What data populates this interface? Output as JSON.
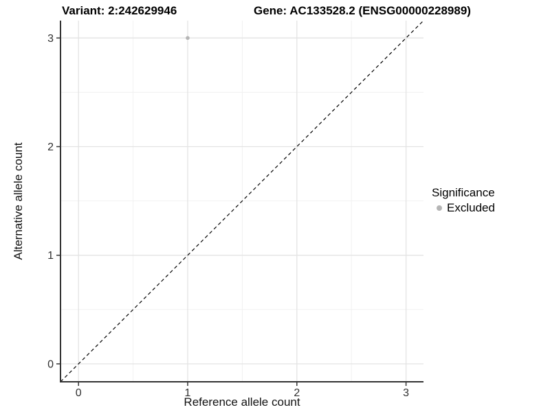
{
  "header": {
    "variant_title": "Variant: 2:242629946",
    "gene_title": "Gene: AC133528.2 (ENSG00000228989)"
  },
  "chart_data": {
    "type": "scatter",
    "xlabel": "Reference allele count",
    "ylabel": "Alternative allele count",
    "xticks": [
      0,
      1,
      2,
      3
    ],
    "yticks": [
      0,
      1,
      2,
      3
    ],
    "minor_ticks": [
      0.5,
      1.5,
      2.5
    ],
    "xlim": [
      -0.165,
      3.16
    ],
    "ylim": [
      -0.165,
      3.16
    ],
    "grid": true,
    "points": [
      {
        "x": 1,
        "y": 3,
        "series": "Excluded",
        "color": "#b5b5b5",
        "radius": 2.8
      }
    ],
    "identity_line": {
      "slope": 1,
      "intercept": 0,
      "style": "dashed",
      "color": "#000000"
    },
    "legend": {
      "title": "Significance",
      "position": "right",
      "items": [
        {
          "label": "Excluded",
          "color": "#b5b5b5"
        }
      ]
    },
    "colors": {
      "background": "#ffffff",
      "grid_major": "#e3e3e3",
      "grid_minor": "#f1f1f1",
      "axis_line": "#333333",
      "tick_text": "#303030"
    }
  }
}
